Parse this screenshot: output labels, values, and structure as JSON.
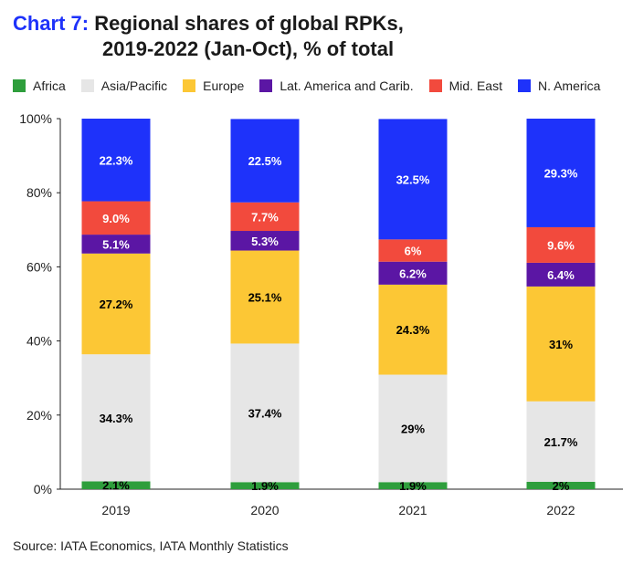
{
  "title": {
    "prefix": "Chart 7:",
    "line1": "Regional shares of global RPKs,",
    "line2": "2019-2022 (Jan-Oct), % of total"
  },
  "source": "Source: IATA Economics, IATA Monthly Statistics",
  "chart_data": {
    "type": "bar",
    "stacked": true,
    "categories": [
      "2019",
      "2020",
      "2021",
      "2022"
    ],
    "ylim": [
      0,
      100
    ],
    "yticks": [
      "0%",
      "20%",
      "40%",
      "60%",
      "80%",
      "100%"
    ],
    "ytick_values": [
      0,
      20,
      40,
      60,
      80,
      100
    ],
    "grid": false,
    "legend_position": "top",
    "series": [
      {
        "name": "Africa",
        "color": "#2e9e3c",
        "values": [
          2.1,
          1.9,
          1.9,
          2.0
        ],
        "labels": [
          "2.1%",
          "1.9%",
          "1.9%",
          "2%"
        ]
      },
      {
        "name": "Asia/Pacific",
        "color": "#e6e6e6",
        "values": [
          34.3,
          37.4,
          29.0,
          21.7
        ],
        "labels": [
          "34.3%",
          "37.4%",
          "29%",
          "21.7%"
        ]
      },
      {
        "name": "Europe",
        "color": "#fcc735",
        "values": [
          27.2,
          25.1,
          24.3,
          31.0
        ],
        "labels": [
          "27.2%",
          "25.1%",
          "24.3%",
          "31%"
        ]
      },
      {
        "name": "Lat. America and Carib.",
        "color": "#5b16a4",
        "values": [
          5.1,
          5.3,
          6.2,
          6.4
        ],
        "labels": [
          "5.1%",
          "5.3%",
          "6.2%",
          "6.4%"
        ]
      },
      {
        "name": "Mid. East",
        "color": "#f24a3d",
        "values": [
          9.0,
          7.7,
          6.0,
          9.6
        ],
        "labels": [
          "9.0%",
          "7.7%",
          "6%",
          "9.6%"
        ]
      },
      {
        "name": "N. America",
        "color": "#1e32fa",
        "values": [
          22.3,
          22.5,
          32.5,
          29.3
        ],
        "labels": [
          "22.3%",
          "22.5%",
          "32.5%",
          "29.3%"
        ]
      }
    ]
  }
}
